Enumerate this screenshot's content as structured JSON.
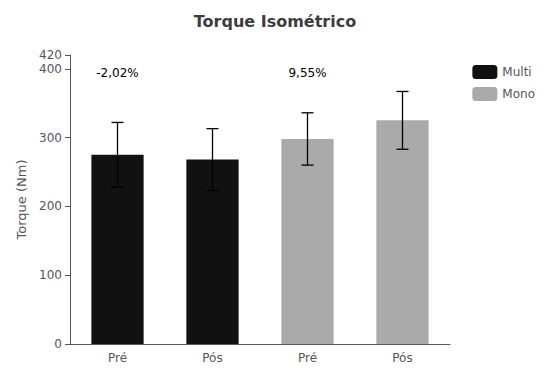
{
  "chart_data": {
    "type": "bar",
    "title": "Torque Isométrico",
    "ylabel": "Torque (Nm)",
    "categories": [
      "Pré",
      "Pós",
      "Pré",
      "Pós"
    ],
    "series": [
      {
        "name": "Multi",
        "color": "#111111",
        "values": [
          275,
          268,
          null,
          null
        ],
        "errors": [
          47,
          45,
          null,
          null
        ]
      },
      {
        "name": "Mono",
        "color": "#aaaaaa",
        "values": [
          null,
          null,
          298,
          325
        ],
        "errors": [
          null,
          null,
          38,
          42
        ]
      }
    ],
    "annotations": [
      {
        "text": "-2,02%",
        "index": 0,
        "y": 385
      },
      {
        "text": "9,55%",
        "index": 2,
        "y": 385
      }
    ],
    "ylim": [
      0,
      420
    ],
    "yticks": [
      0,
      100,
      200,
      300,
      400
    ],
    "grid": false,
    "legend": "right"
  }
}
